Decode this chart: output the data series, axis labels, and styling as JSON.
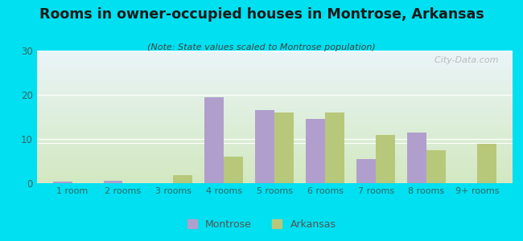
{
  "title": "Rooms in owner-occupied houses in Montrose, Arkansas",
  "subtitle": "(Note: State values scaled to Montrose population)",
  "categories": [
    "1 room",
    "2 rooms",
    "3 rooms",
    "4 rooms",
    "5 rooms",
    "6 rooms",
    "7 rooms",
    "8 rooms",
    "9+ rooms"
  ],
  "montrose_values": [
    0.3,
    0.5,
    0.0,
    19.5,
    16.5,
    14.5,
    5.5,
    11.5,
    0.0
  ],
  "arkansas_values": [
    0.0,
    0.0,
    1.8,
    6.0,
    16.0,
    16.0,
    11.0,
    7.5,
    9.0
  ],
  "montrose_color": "#b09fcc",
  "arkansas_color": "#b8c87a",
  "background_outer": "#00e0f0",
  "ylim": [
    0,
    30
  ],
  "yticks": [
    0,
    10,
    20,
    30
  ],
  "bar_width": 0.38,
  "watermark": "  City-Data.com",
  "legend_montrose": "Montrose",
  "legend_arkansas": "Arkansas"
}
